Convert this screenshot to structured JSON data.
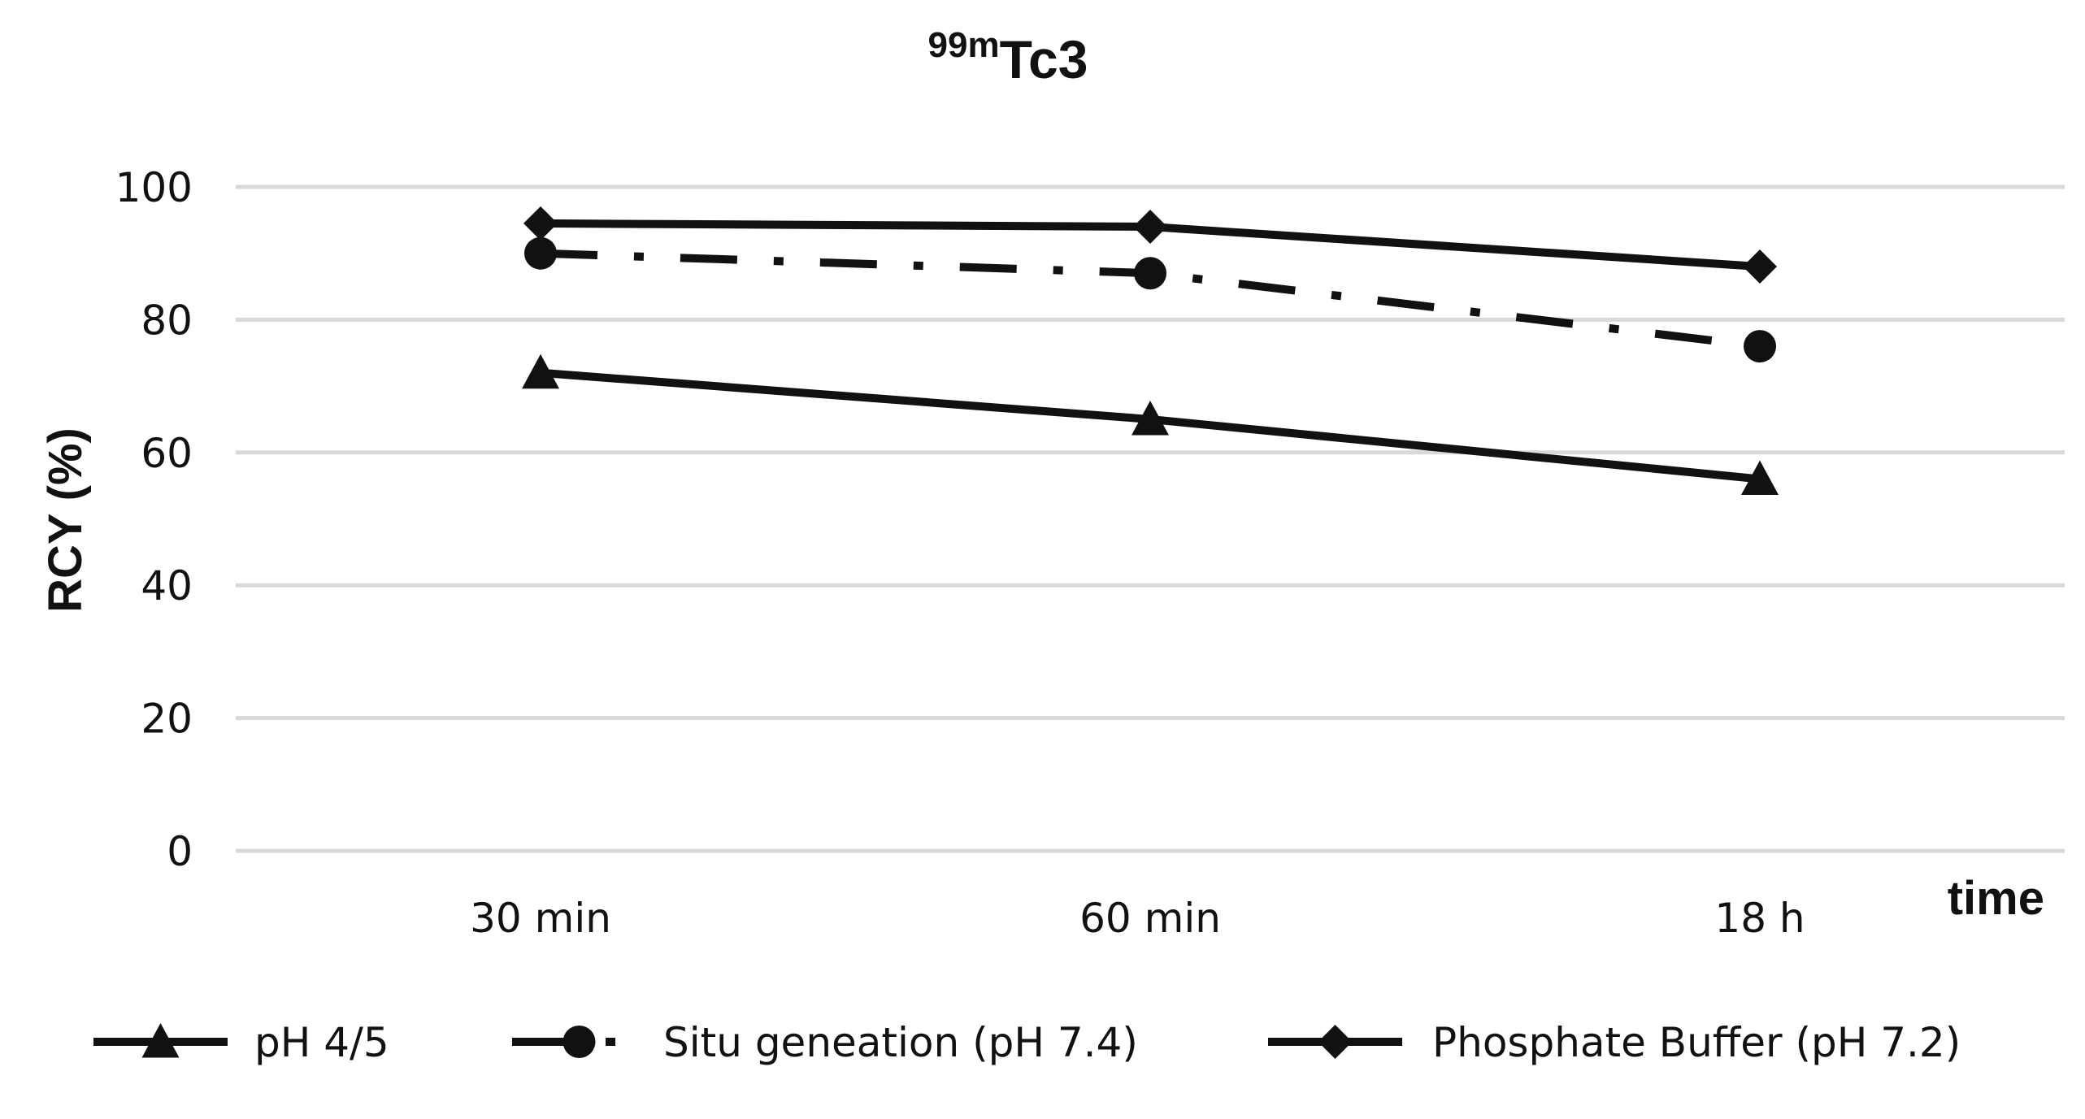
{
  "chart_data": {
    "type": "line",
    "title_superscript": "99m",
    "title_main": "Tc3",
    "xlabel": "time",
    "ylabel": "RCY (%)",
    "categories": [
      "30 min",
      "60 min",
      "18 h"
    ],
    "ylim": [
      0,
      100
    ],
    "yticks": [
      0,
      20,
      40,
      60,
      80,
      100
    ],
    "grid": true,
    "legend_position": "bottom",
    "series": [
      {
        "name": "pH 4/5",
        "marker": "triangle",
        "dash": "solid",
        "values": [
          72,
          65,
          56
        ]
      },
      {
        "name": "Situ geneation (pH 7.4)",
        "marker": "circle",
        "dash": "dashdot",
        "values": [
          90,
          87,
          76
        ]
      },
      {
        "name": "Phosphate Buffer (pH 7.2)",
        "marker": "diamond",
        "dash": "solid",
        "values": [
          94.5,
          94,
          88
        ]
      }
    ]
  }
}
